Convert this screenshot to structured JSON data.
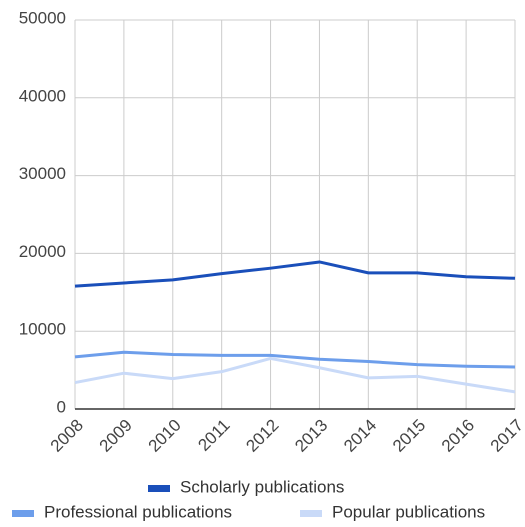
{
  "chart_data": {
    "type": "line",
    "categories": [
      "2008",
      "2009",
      "2010",
      "2011",
      "2012",
      "2013",
      "2014",
      "2015",
      "2016",
      "2017"
    ],
    "series": [
      {
        "name": "Scholarly publications",
        "color": "#1a4fba",
        "values": [
          15800,
          16200,
          16600,
          17400,
          18100,
          18900,
          17500,
          17500,
          17000,
          16800
        ]
      },
      {
        "name": "Professional publications",
        "color": "#6d9eeb",
        "values": [
          6700,
          7300,
          7000,
          6900,
          6900,
          6400,
          6100,
          5700,
          5500,
          5400
        ]
      },
      {
        "name": "Popular publications",
        "color": "#c9daf8",
        "values": [
          3400,
          4600,
          3900,
          4800,
          6500,
          5300,
          4000,
          4200,
          3200,
          2200
        ]
      }
    ],
    "ylim": [
      0,
      50000
    ],
    "yticks": [
      0,
      10000,
      20000,
      30000,
      40000,
      50000
    ],
    "grid": true,
    "legend": "bottom"
  }
}
